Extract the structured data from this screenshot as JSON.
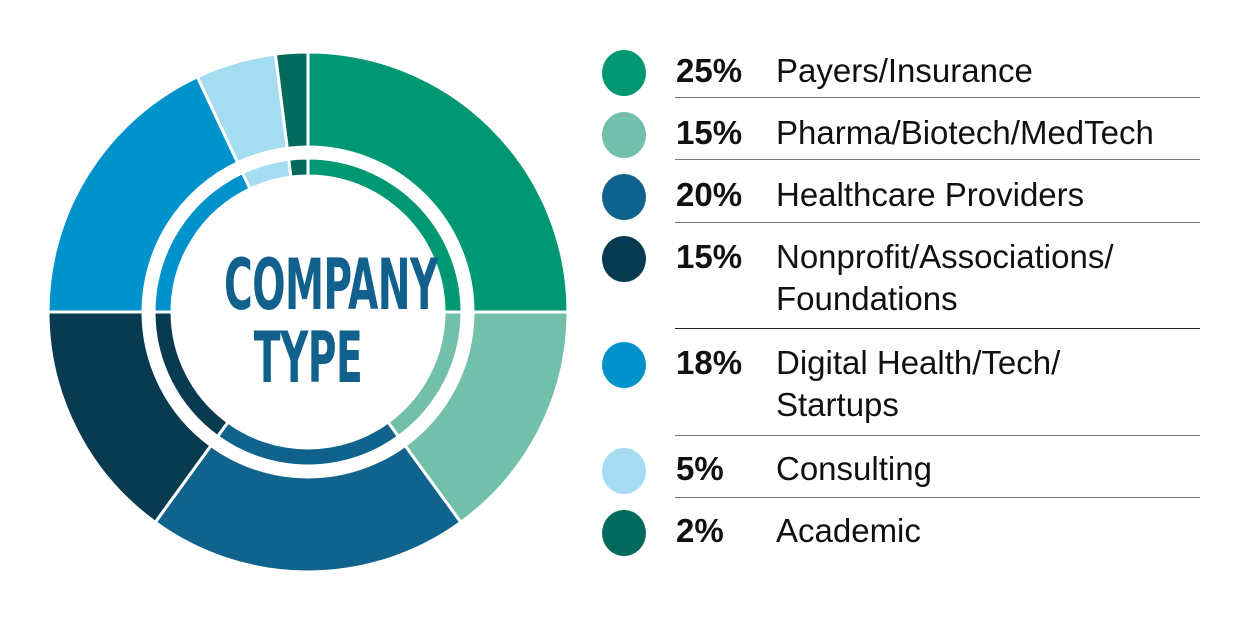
{
  "chart_data": {
    "type": "pie",
    "variant": "double-ring donut",
    "title": "COMPANY TYPE",
    "categories": [
      "Payers/Insurance",
      "Pharma/Biotech/MedTech",
      "Healthcare Providers",
      "Nonprofit/Associations/Foundations",
      "Digital Health/Tech/Startups",
      "Consulting",
      "Academic"
    ],
    "values": [
      25,
      15,
      20,
      15,
      18,
      5,
      2
    ],
    "unit": "%",
    "colors": [
      "#009873",
      "#72c0ab",
      "#10638c",
      "#083a50",
      "#0092cb",
      "#a4dcf2",
      "#036b5d"
    ],
    "start_angle": "12 o'clock",
    "direction": "clockwise",
    "legend_position": "right"
  },
  "center": {
    "line1": "COMPANY",
    "line2": "TYPE",
    "color": "#12618c"
  },
  "legend": {
    "items": [
      {
        "pct": "25%",
        "label": "Payers/Insurance",
        "color": "#009873"
      },
      {
        "pct": "15%",
        "label": "Pharma/Biotech/MedTech",
        "color": "#72c0ab"
      },
      {
        "pct": "20%",
        "label": "Healthcare Providers",
        "color": "#10638c"
      },
      {
        "pct": "15%",
        "label": "Nonprofit/Associations/\nFoundations",
        "color": "#083a50"
      },
      {
        "pct": "18%",
        "label": "Digital Health/Tech/\nStartups",
        "color": "#0092cb"
      },
      {
        "pct": "5%",
        "label": "Consulting",
        "color": "#a4dcf2"
      },
      {
        "pct": "2%",
        "label": "Academic",
        "color": "#036b5d"
      }
    ]
  }
}
